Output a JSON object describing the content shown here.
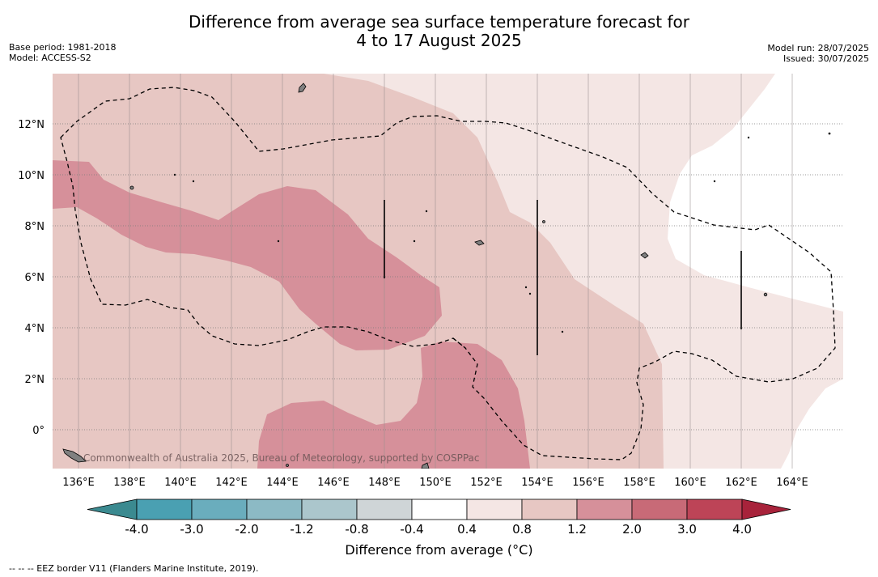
{
  "header": {
    "title_line1": "Difference from average sea surface temperature forecast for",
    "title_line2": "4 to 17 August 2025",
    "base_period": "Base period: 1981-2018",
    "model": "Model: ACCESS-S2",
    "model_run": "Model run: 28/07/2025",
    "issued": "Issued: 30/07/2025"
  },
  "map": {
    "lat_labels": [
      "12°N",
      "10°N",
      "8°N",
      "6°N",
      "4°N",
      "2°N",
      "0°"
    ],
    "lon_labels": [
      "136°E",
      "138°E",
      "140°E",
      "142°E",
      "144°E",
      "146°E",
      "148°E",
      "150°E",
      "152°E",
      "154°E",
      "156°E",
      "158°E",
      "160°E",
      "162°E",
      "164°E"
    ],
    "copyright": "Commonwealth of Australia 2025, Bureau of Meteorology, supported by COSPPac",
    "colors": {
      "anom_0_4_0_8": "#f4e6e4",
      "anom_0_8_1_2": "#e7c7c3",
      "anom_1_2_2_0": "#d6909a",
      "land": "#808080"
    }
  },
  "colorbar": {
    "ticks": [
      "-4.0",
      "-3.0",
      "-2.0",
      "-1.2",
      "-0.8",
      "-0.4",
      "0.4",
      "0.8",
      "1.2",
      "2.0",
      "3.0",
      "4.0"
    ],
    "colors": [
      "#4aa0b2",
      "#6aadbd",
      "#8cbac5",
      "#abc6cc",
      "#cfd5d7",
      "#ffffff",
      "#f4e6e4",
      "#e7c7c3",
      "#d6909a",
      "#c86a77",
      "#bd4457"
    ],
    "under_color": "#3b8a90",
    "over_color": "#a8233b",
    "label": "Difference from average (°C)"
  },
  "footnote": "--  --  -- EEZ border V11 (Flanders Marine Institute, 2019)."
}
